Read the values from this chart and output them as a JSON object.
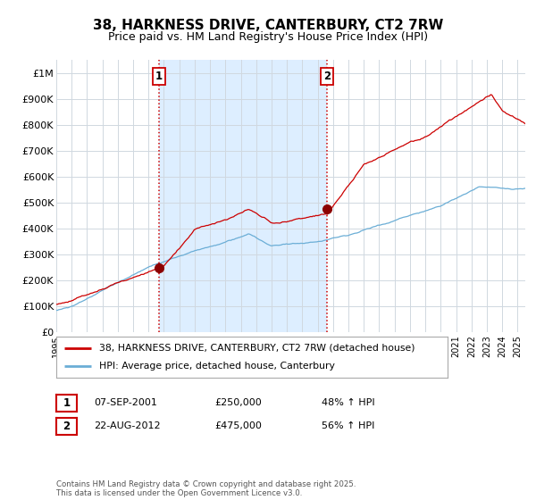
{
  "title": "38, HARKNESS DRIVE, CANTERBURY, CT2 7RW",
  "subtitle": "Price paid vs. HM Land Registry's House Price Index (HPI)",
  "ylim": [
    0,
    1050000
  ],
  "yticks": [
    0,
    100000,
    200000,
    300000,
    400000,
    500000,
    600000,
    700000,
    800000,
    900000,
    1000000
  ],
  "ytick_labels": [
    "£0",
    "£100K",
    "£200K",
    "£300K",
    "£400K",
    "£500K",
    "£600K",
    "£700K",
    "£800K",
    "£900K",
    "£1M"
  ],
  "hpi_color": "#6baed6",
  "price_color": "#cc0000",
  "marker_color": "#8b0000",
  "background_color": "#ffffff",
  "plot_bg": "#ffffff",
  "grid_color": "#d0d8e0",
  "shade_color": "#ddeeff",
  "vline_color": "#cc0000",
  "title_fontsize": 11,
  "subtitle_fontsize": 9,
  "ann1_x": 2001.67,
  "ann1_y": 250000,
  "ann2_x": 2012.63,
  "ann2_y": 475000,
  "legend_line1": "38, HARKNESS DRIVE, CANTERBURY, CT2 7RW (detached house)",
  "legend_line2": "HPI: Average price, detached house, Canterbury",
  "table_row1": [
    "1",
    "07-SEP-2001",
    "£250,000",
    "48% ↑ HPI"
  ],
  "table_row2": [
    "2",
    "22-AUG-2012",
    "£475,000",
    "56% ↑ HPI"
  ],
  "footer": "Contains HM Land Registry data © Crown copyright and database right 2025.\nThis data is licensed under the Open Government Licence v3.0.",
  "xmin": 1995.0,
  "xmax": 2025.5
}
